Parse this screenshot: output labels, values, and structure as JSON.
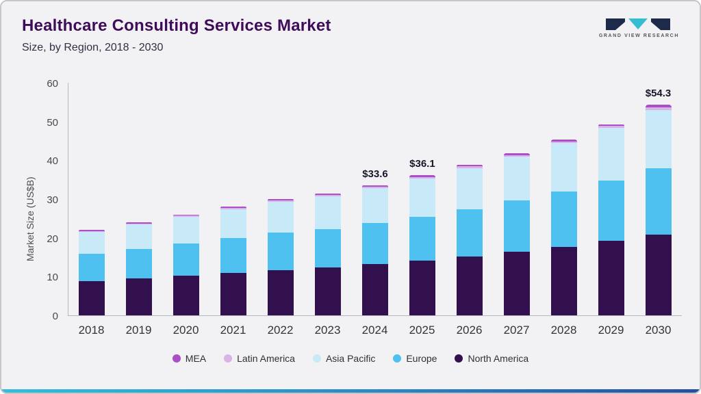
{
  "header": {
    "title": "Healthcare Consulting Services Market",
    "subtitle": "Size, by Region, 2018 - 2030"
  },
  "logo": {
    "text": "GRAND VIEW RESEARCH"
  },
  "chart_data": {
    "type": "bar",
    "stacked": true,
    "title": "Healthcare Consulting Services Market Size, by Region, 2018 - 2030",
    "xlabel": "",
    "ylabel": "Market Size (US$B)",
    "ylim": [
      0,
      60
    ],
    "yticks": [
      0,
      10,
      20,
      30,
      40,
      50,
      60
    ],
    "grid": false,
    "legend_position": "bottom",
    "categories": [
      "2018",
      "2019",
      "2020",
      "2021",
      "2022",
      "2023",
      "2024",
      "2025",
      "2026",
      "2027",
      "2028",
      "2029",
      "2030"
    ],
    "series": [
      {
        "name": "North America",
        "color": "#32104d",
        "values": [
          8.8,
          9.5,
          10.3,
          11.0,
          11.7,
          12.3,
          13.2,
          14.1,
          15.2,
          16.4,
          17.6,
          19.2,
          20.8
        ]
      },
      {
        "name": "Europe",
        "color": "#4ec1f0",
        "values": [
          7.0,
          7.6,
          8.2,
          9.0,
          9.6,
          10.0,
          10.7,
          11.4,
          12.1,
          13.2,
          14.4,
          15.6,
          17.2
        ]
      },
      {
        "name": "Asia Pacific",
        "color": "#c8e9f8",
        "values": [
          5.7,
          6.3,
          6.9,
          7.4,
          8.0,
          8.5,
          9.0,
          9.8,
          10.7,
          11.3,
          12.4,
          13.6,
          15.0
        ]
      },
      {
        "name": "Latin America",
        "color": "#d9b3e6",
        "values": [
          0.3,
          0.3,
          0.3,
          0.35,
          0.35,
          0.35,
          0.35,
          0.4,
          0.4,
          0.45,
          0.45,
          0.45,
          0.65
        ]
      },
      {
        "name": "MEA",
        "color": "#ab4fc8",
        "values": [
          0.3,
          0.3,
          0.3,
          0.35,
          0.35,
          0.35,
          0.35,
          0.4,
          0.4,
          0.45,
          0.45,
          0.45,
          0.65
        ]
      }
    ],
    "annotations": [
      {
        "category": "2024",
        "label": "$33.6"
      },
      {
        "category": "2025",
        "label": "$36.1"
      },
      {
        "category": "2030",
        "label": "$54.3"
      }
    ],
    "legend": [
      "MEA",
      "Latin America",
      "Asia Pacific",
      "Europe",
      "North America"
    ]
  }
}
